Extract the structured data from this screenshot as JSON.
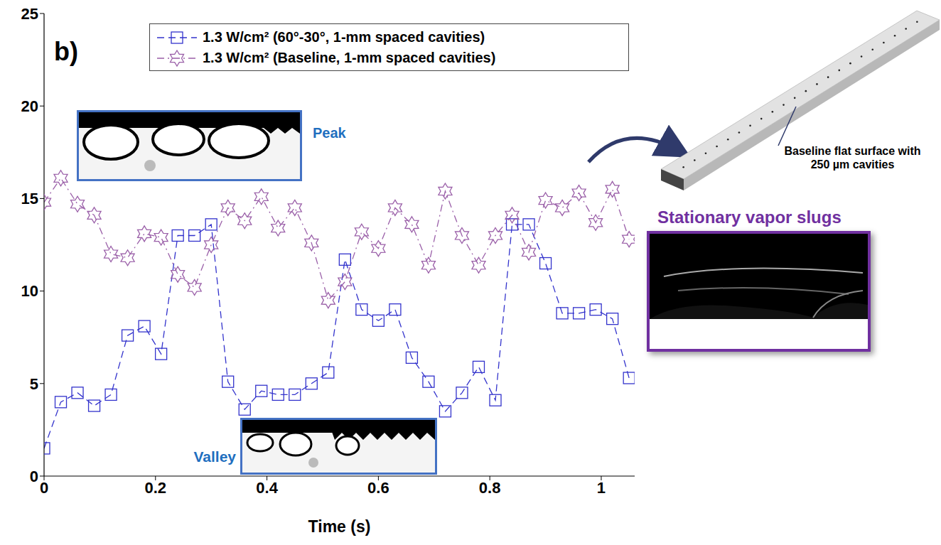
{
  "chart_data": {
    "type": "line",
    "x_label": "Time (s)",
    "x": [
      0,
      0.03,
      0.06,
      0.09,
      0.12,
      0.15,
      0.18,
      0.21,
      0.24,
      0.27,
      0.3,
      0.33,
      0.36,
      0.39,
      0.42,
      0.45,
      0.48,
      0.51,
      0.54,
      0.57,
      0.6,
      0.63,
      0.66,
      0.69,
      0.72,
      0.75,
      0.78,
      0.81,
      0.84,
      0.87,
      0.9,
      0.93,
      0.96,
      0.99,
      1.02,
      1.05
    ],
    "xlim": [
      0,
      1.06
    ],
    "xticks": [
      0,
      0.2,
      0.4,
      0.6,
      0.8,
      1
    ],
    "ylim": [
      0,
      25
    ],
    "yticks": [
      0,
      5,
      10,
      15,
      20,
      25
    ],
    "legend": "upper right",
    "series": [
      {
        "name": "1.3 W/cm² (60°-30°, 1-mm spaced cavities)",
        "color": "#3333cc",
        "marker": "square",
        "line_style": "dashed",
        "values": [
          1.5,
          4.0,
          4.5,
          3.8,
          4.4,
          7.6,
          8.1,
          6.6,
          13.0,
          13.0,
          13.6,
          5.1,
          3.6,
          4.6,
          4.4,
          4.4,
          5.0,
          5.6,
          11.7,
          9.0,
          8.4,
          9.0,
          6.4,
          5.1,
          3.5,
          4.5,
          5.9,
          4.1,
          13.6,
          13.6,
          11.5,
          8.8,
          8.8,
          9.0,
          8.5,
          5.3
        ]
      },
      {
        "name": "1.3 W/cm² (Baseline, 1-mm spaced cavities)",
        "color": "#9a5fa8",
        "marker": "star",
        "line_style": "dashdot",
        "values": [
          14.8,
          16.1,
          14.7,
          14.1,
          12.0,
          11.8,
          13.1,
          12.9,
          10.9,
          10.2,
          12.5,
          14.5,
          13.8,
          15.1,
          13.4,
          14.5,
          12.6,
          9.5,
          10.5,
          13.2,
          12.3,
          14.5,
          13.6,
          11.4,
          15.4,
          13.0,
          11.4,
          13.0,
          14.1,
          12.1,
          14.9,
          14.5,
          15.3,
          13.7,
          15.5,
          12.8
        ]
      }
    ],
    "annotations": [
      "b)",
      "Peak",
      "Valley",
      "Stationary vapor slugs",
      "Baseline flat surface with 250 µm cavities"
    ]
  }
}
